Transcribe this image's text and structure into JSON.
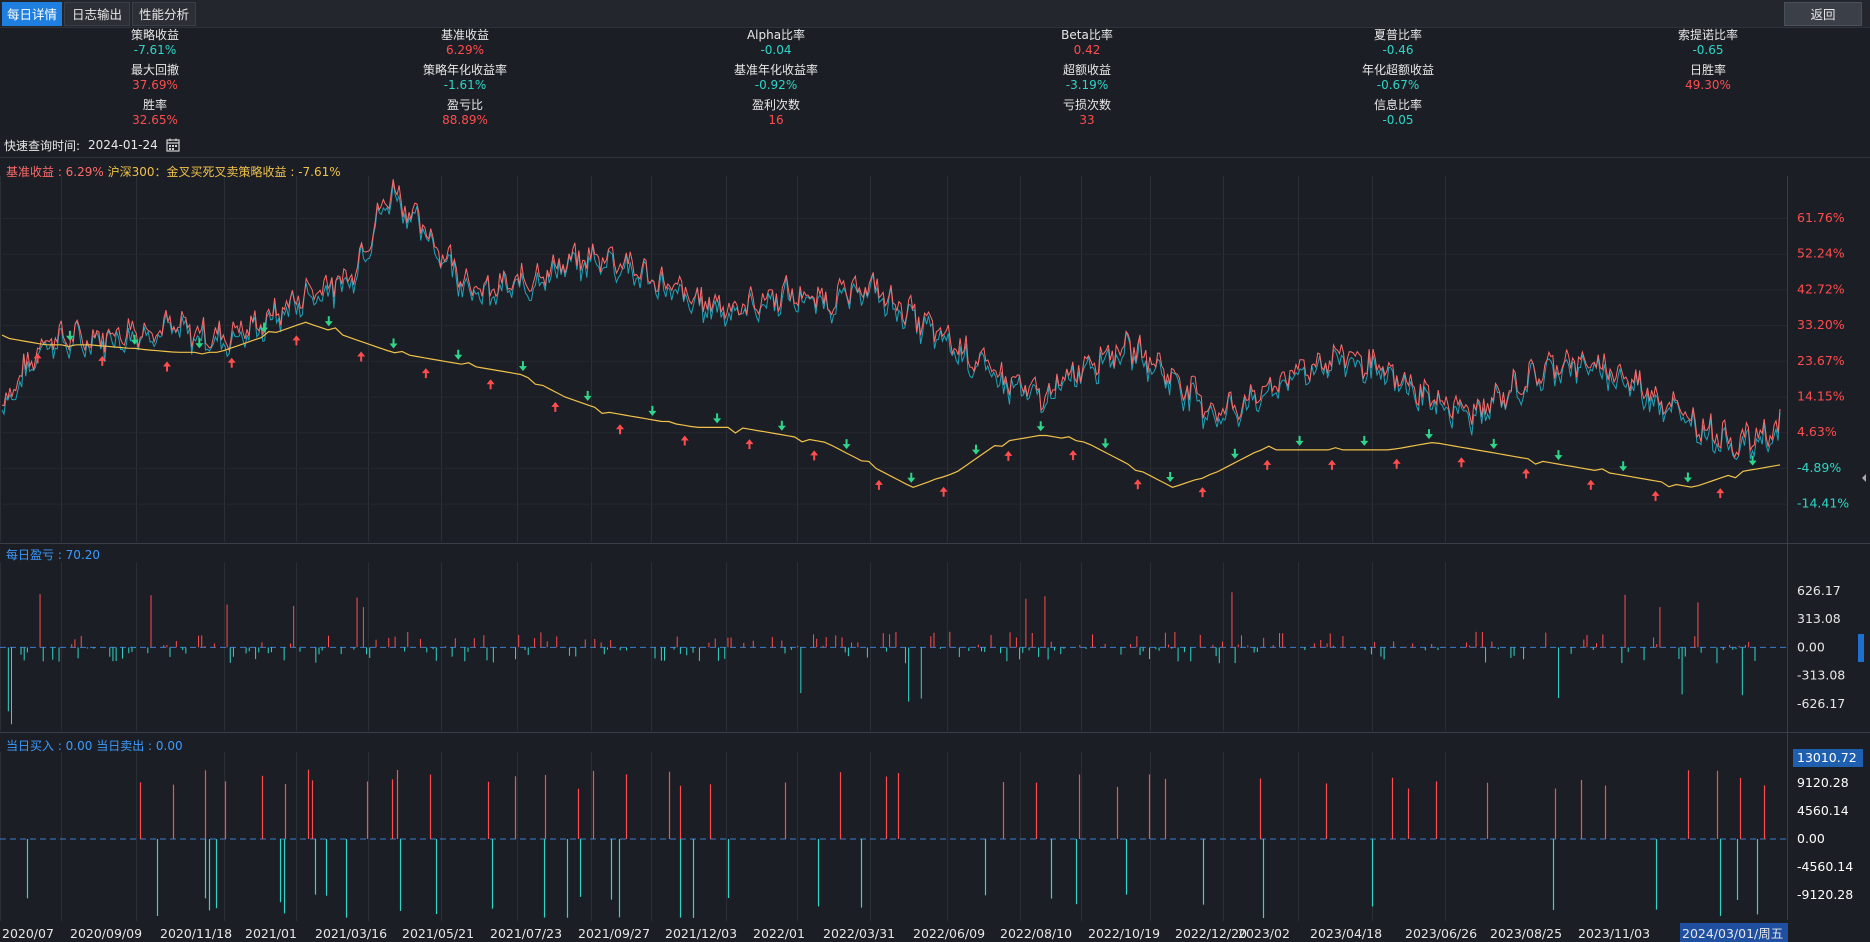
{
  "tabs": [
    {
      "label": "每日详情",
      "active": true
    },
    {
      "label": "日志输出",
      "active": false
    },
    {
      "label": "性能分析",
      "active": false
    }
  ],
  "back_label": "返回",
  "stats": [
    {
      "label": "策略收益",
      "value": "-7.61%",
      "color": "cyan"
    },
    {
      "label": "基准收益",
      "value": "6.29%",
      "color": "red"
    },
    {
      "label": "Alpha比率",
      "value": "-0.04",
      "color": "cyan"
    },
    {
      "label": "Beta比率",
      "value": "0.42",
      "color": "red"
    },
    {
      "label": "夏普比率",
      "value": "-0.46",
      "color": "cyan"
    },
    {
      "label": "索提诺比率",
      "value": "-0.65",
      "color": "cyan"
    },
    {
      "label": "最大回撤",
      "value": "37.69%",
      "color": "red"
    },
    {
      "label": "策略年化收益率",
      "value": "-1.61%",
      "color": "cyan"
    },
    {
      "label": "基准年化收益率",
      "value": "-0.92%",
      "color": "cyan"
    },
    {
      "label": "超额收益",
      "value": "-3.19%",
      "color": "cyan"
    },
    {
      "label": "年化超额收益",
      "value": "-0.67%",
      "color": "cyan"
    },
    {
      "label": "日胜率",
      "value": "49.30%",
      "color": "red"
    },
    {
      "label": "胜率",
      "value": "32.65%",
      "color": "red"
    },
    {
      "label": "盈亏比",
      "value": "88.89%",
      "color": "red"
    },
    {
      "label": "盈利次数",
      "value": "16",
      "color": "red"
    },
    {
      "label": "亏损次数",
      "value": "33",
      "color": "red"
    },
    {
      "label": "信息比率",
      "value": "-0.05",
      "color": "cyan"
    }
  ],
  "quick_query": {
    "label": "快速查询时间:",
    "date": "2024-01-24"
  },
  "legend_main": {
    "benchmark": "基准收益 : 6.29%",
    "strategy": "沪深300：金叉买死叉卖策略收益 : -7.61%"
  },
  "legend_pnl": "每日盈亏 : 70.20",
  "legend_trade": "当日买入 : 0.00  当日卖出 : 0.00",
  "colors": {
    "up": "#ff4d4f",
    "down": "#2fd6c8",
    "strategy": "#f0c14b",
    "benchmark": "#ff6b6b",
    "accent": "#1f7fe0"
  },
  "chart_data": [
    {
      "type": "line",
      "title": "基准收益 / 策略收益",
      "y_ticks": [
        "61.76%",
        "52.24%",
        "42.72%",
        "33.20%",
        "23.67%",
        "14.15%",
        "4.63%",
        "-4.89%",
        "-14.41%"
      ],
      "x_ticks": [
        "2020/07",
        "2020/09/09",
        "2020/11/18",
        "2021/01",
        "2021/03/16",
        "2021/05/21",
        "2021/07/23",
        "2021/09/27",
        "2021/12/03",
        "2022/01",
        "2022/03/31",
        "2022/06/09",
        "2022/08/10",
        "2022/10/19",
        "2022/12/20",
        "2023/02",
        "2023/04/18",
        "2023/06/26",
        "2023/08/25",
        "2023/11/03",
        "2024/03/01/周五"
      ],
      "series": [
        {
          "name": "基准收益",
          "values": [
            12,
            30,
            30,
            32,
            33,
            30,
            34,
            42,
            46,
            70,
            55,
            42,
            45,
            50,
            52,
            46,
            40,
            38,
            42,
            40,
            44,
            36,
            28,
            20,
            14,
            24,
            28,
            20,
            10,
            15,
            22,
            26,
            20,
            14,
            10,
            18,
            24,
            22,
            16,
            8,
            2,
            6
          ]
        },
        {
          "name": "沪深300：金叉买死叉卖策略收益",
          "values": [
            30,
            28,
            28,
            27,
            26,
            26,
            30,
            34,
            30,
            26,
            24,
            22,
            20,
            14,
            10,
            8,
            6,
            6,
            4,
            2,
            -4,
            -10,
            -6,
            2,
            4,
            2,
            -4,
            -10,
            -6,
            0,
            0,
            0,
            0,
            2,
            0,
            -2,
            -4,
            -6,
            -8,
            -10,
            -6,
            -4
          ]
        }
      ]
    },
    {
      "type": "bar",
      "title": "每日盈亏",
      "y_ticks": [
        "626.17",
        "313.08",
        "0.00",
        "-313.08",
        "-626.17"
      ]
    },
    {
      "type": "bar",
      "title": "当日买入 / 当日卖出",
      "y_ticks": [
        "13010.72",
        "9120.28",
        "4560.14",
        "0.00",
        "-4560.14",
        "-9120.28"
      ]
    }
  ]
}
